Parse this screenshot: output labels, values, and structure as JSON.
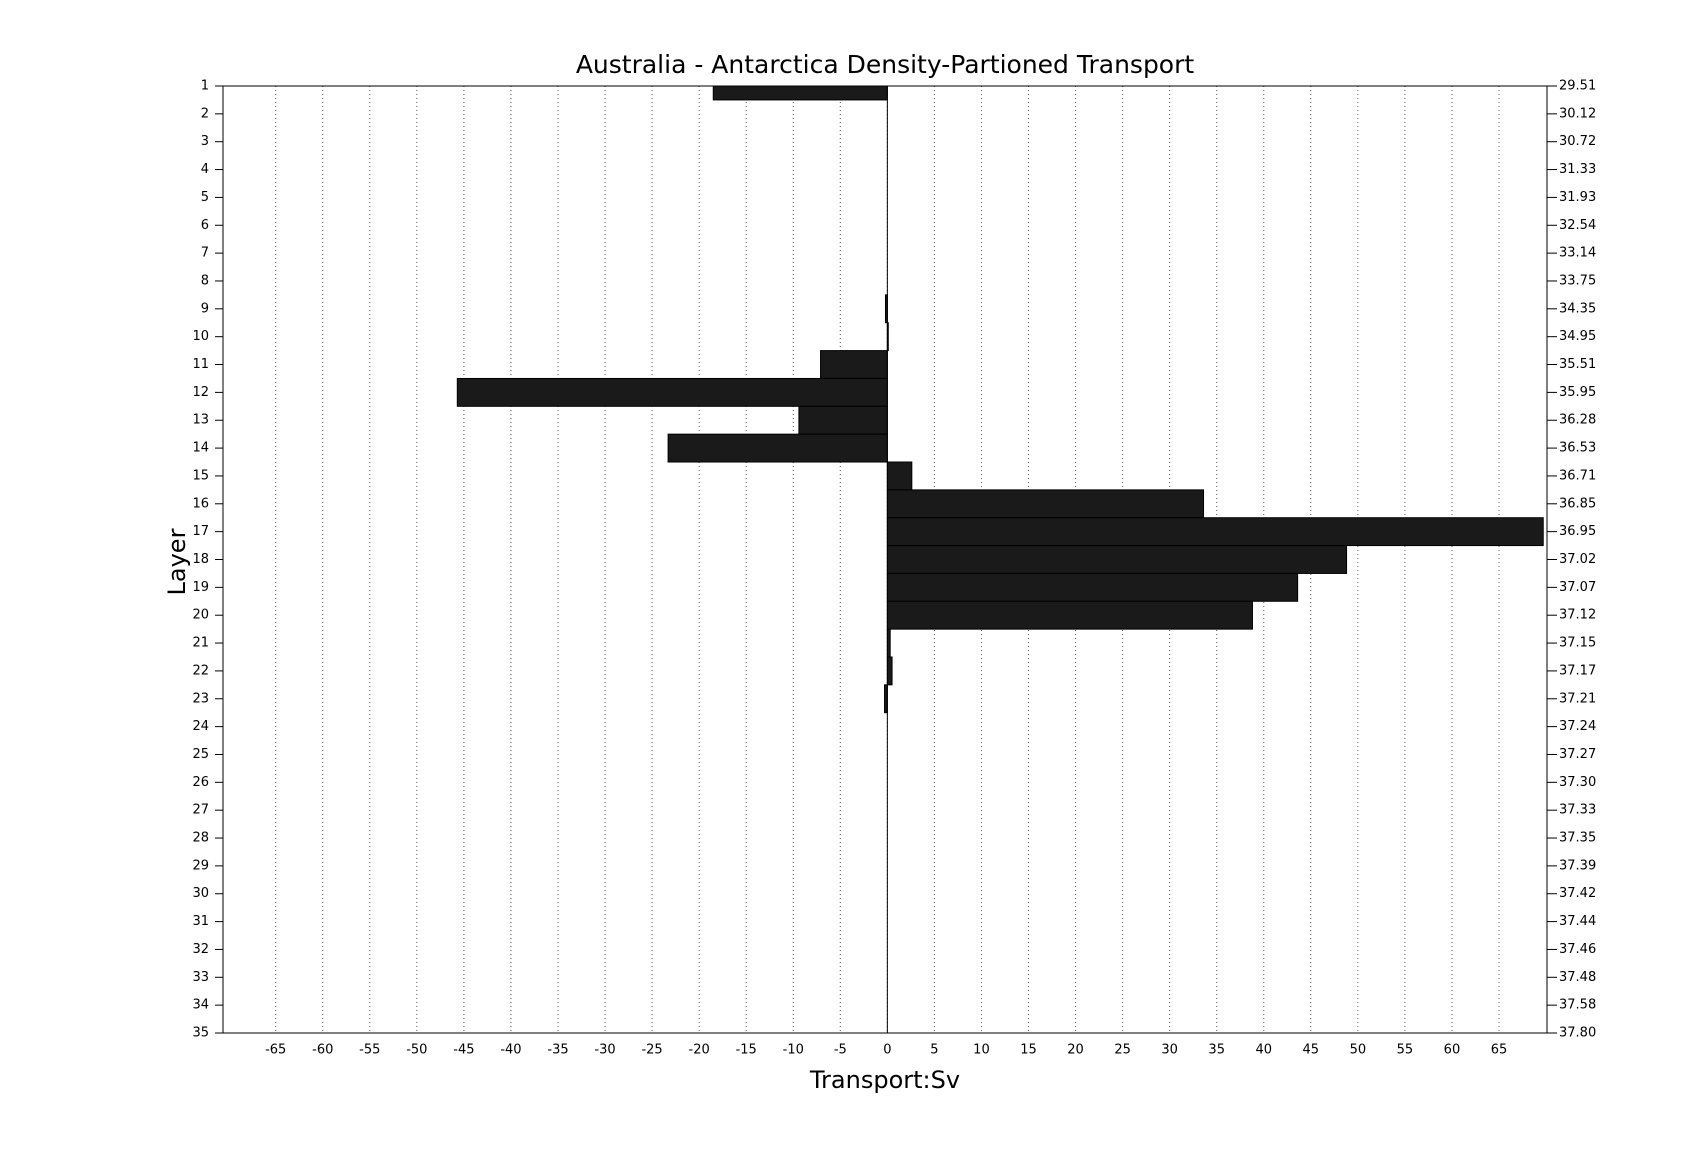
{
  "chart_data": {
    "type": "barh",
    "title": "Australia - Antarctica Density-Partioned Transport",
    "xlabel": "Transport:Sv",
    "ylabel": "Layer",
    "y": [
      1,
      2,
      3,
      4,
      5,
      6,
      7,
      8,
      9,
      10,
      11,
      12,
      13,
      14,
      15,
      16,
      17,
      18,
      19,
      20,
      21,
      22,
      23,
      24,
      25,
      26,
      27,
      28,
      29,
      30,
      31,
      32,
      33,
      34,
      35
    ],
    "values": [
      -18.5,
      0,
      0,
      0,
      0,
      0,
      0,
      0,
      -0.2,
      0.1,
      -7.1,
      -45.7,
      -9.4,
      -23.3,
      2.6,
      33.6,
      69.7,
      48.8,
      43.6,
      38.8,
      0.3,
      0.5,
      -0.3,
      0,
      0,
      0,
      0,
      0,
      0,
      0,
      0,
      0,
      0,
      0,
      0
    ],
    "color": "#1a1a1a",
    "xlim": [
      -70.6,
      70.1
    ],
    "xticks": [
      -65,
      -60,
      -55,
      -50,
      -45,
      -40,
      -35,
      -30,
      -25,
      -20,
      -15,
      -10,
      -5,
      0,
      5,
      10,
      15,
      20,
      25,
      30,
      35,
      40,
      45,
      50,
      55,
      60,
      65
    ],
    "ylim": [
      1,
      35
    ],
    "y_direction": "reverse",
    "yticks": [
      1,
      2,
      3,
      4,
      5,
      6,
      7,
      8,
      9,
      10,
      11,
      12,
      13,
      14,
      15,
      16,
      17,
      18,
      19,
      20,
      21,
      22,
      23,
      24,
      25,
      26,
      27,
      28,
      29,
      30,
      31,
      32,
      33,
      34,
      35
    ],
    "y2_labels": [
      "29.51",
      "30.12",
      "30.72",
      "31.33",
      "31.93",
      "32.54",
      "33.14",
      "33.75",
      "34.35",
      "34.95",
      "35.51",
      "35.95",
      "36.28",
      "36.53",
      "36.71",
      "36.85",
      "36.95",
      "37.02",
      "37.07",
      "37.12",
      "37.15",
      "37.17",
      "37.21",
      "37.24",
      "37.27",
      "37.30",
      "37.33",
      "37.35",
      "37.39",
      "37.42",
      "37.44",
      "37.46",
      "37.48",
      "37.58",
      "37.80"
    ],
    "grid": true
  }
}
